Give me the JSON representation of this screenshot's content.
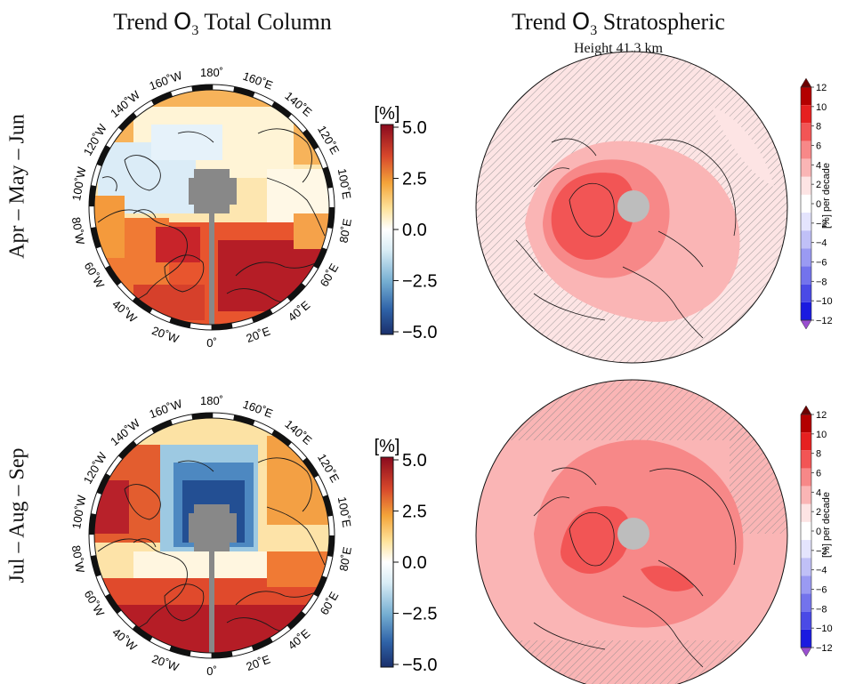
{
  "titles": {
    "left_prefix": "Trend ",
    "left_species": "O",
    "left_sub": "3",
    "left_suffix": " Total Column",
    "right_prefix": "Trend ",
    "right_species": "O",
    "right_sub": "3",
    "right_suffix": " Stratospheric",
    "right_subtitle": "Height 41.3 km"
  },
  "rows": [
    {
      "label": "Apr – May – Jun"
    },
    {
      "label": "Jul – Aug – Sep"
    }
  ],
  "longitude_labels": [
    "180˚",
    "160˚E",
    "140˚E",
    "120˚E",
    "100˚E",
    "80˚E",
    "60˚E",
    "40˚E",
    "20˚E",
    "0˚",
    "20˚W",
    "40˚W",
    "60˚W",
    "80˚W",
    "100˚W",
    "120˚W",
    "140˚W",
    "160˚W"
  ],
  "colorbar_total": {
    "unit": "[%]",
    "ticks": [
      "5.0",
      "2.5",
      "0.0",
      "−2.5",
      "−5.0"
    ],
    "range": [
      -5.0,
      5.0
    ],
    "colormap": "RdYlBu_r"
  },
  "colorbar_strat": {
    "label": "[%] per decade",
    "ticks": [
      "12",
      "10",
      "8",
      "6",
      "4",
      "2",
      "0",
      "−2",
      "−4",
      "−6",
      "−8",
      "−10",
      "−12"
    ],
    "colors": [
      "#b30000",
      "#e62020",
      "#f25555",
      "#f78888",
      "#fab5b5",
      "#fde4e4",
      "#ffffff",
      "#e4e4fd",
      "#c0c0f7",
      "#9a9af2",
      "#7373ec",
      "#4a4ae6",
      "#1a1ae0"
    ],
    "extend_top": "#6b0000",
    "extend_bottom": "#9a4fd0"
  },
  "colors": {
    "missing": "#888888",
    "strat_missing": "#bdbdbd",
    "land_line": "#1a1a1a"
  }
}
